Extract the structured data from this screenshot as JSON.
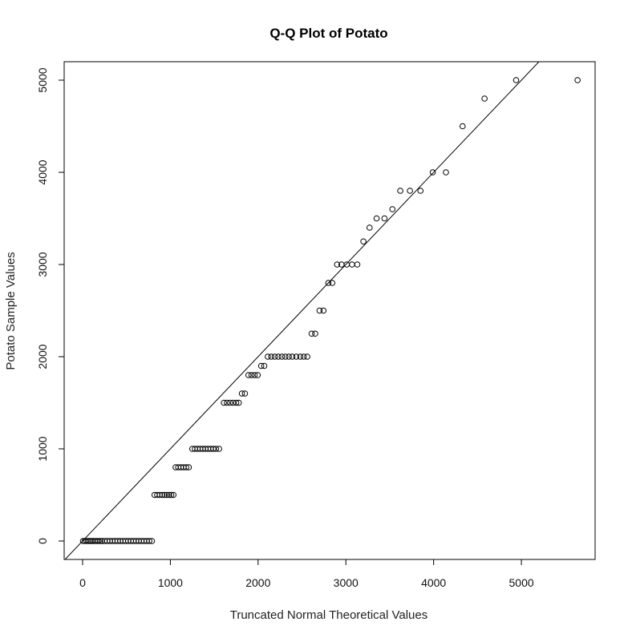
{
  "chart_data": {
    "type": "scatter",
    "title": "Q-Q Plot of Potato",
    "xlabel": "Truncated Normal Theoretical Values",
    "ylabel": "Potato Sample Values",
    "xlim": [
      -210,
      5840
    ],
    "ylim": [
      -200,
      5200
    ],
    "xticks": [
      0,
      1000,
      2000,
      3000,
      4000,
      5000
    ],
    "yticks": [
      0,
      1000,
      2000,
      3000,
      4000,
      5000
    ],
    "grid": false,
    "reference_line": {
      "slope": 1,
      "intercept": 0
    },
    "series": [
      {
        "points": [
          [
            5,
            0
          ],
          [
            25,
            0
          ],
          [
            45,
            0
          ],
          [
            65,
            0
          ],
          [
            85,
            0
          ],
          [
            100,
            0
          ],
          [
            120,
            0
          ],
          [
            140,
            0
          ],
          [
            160,
            0
          ],
          [
            180,
            0
          ],
          [
            200,
            0
          ],
          [
            220,
            0
          ],
          [
            250,
            0
          ],
          [
            280,
            0
          ],
          [
            310,
            0
          ],
          [
            340,
            0
          ],
          [
            370,
            0
          ],
          [
            400,
            0
          ],
          [
            430,
            0
          ],
          [
            460,
            0
          ],
          [
            490,
            0
          ],
          [
            520,
            0
          ],
          [
            550,
            0
          ],
          [
            580,
            0
          ],
          [
            610,
            0
          ],
          [
            640,
            0
          ],
          [
            670,
            0
          ],
          [
            700,
            0
          ],
          [
            730,
            0
          ],
          [
            760,
            0
          ],
          [
            790,
            0
          ],
          [
            820,
            500
          ],
          [
            850,
            500
          ],
          [
            880,
            500
          ],
          [
            910,
            500
          ],
          [
            935,
            500
          ],
          [
            960,
            500
          ],
          [
            985,
            500
          ],
          [
            1010,
            500
          ],
          [
            1035,
            500
          ],
          [
            1060,
            800
          ],
          [
            1090,
            800
          ],
          [
            1120,
            800
          ],
          [
            1150,
            800
          ],
          [
            1180,
            800
          ],
          [
            1210,
            800
          ],
          [
            1250,
            1000
          ],
          [
            1280,
            1000
          ],
          [
            1310,
            1000
          ],
          [
            1340,
            1000
          ],
          [
            1370,
            1000
          ],
          [
            1400,
            1000
          ],
          [
            1430,
            1000
          ],
          [
            1460,
            1000
          ],
          [
            1490,
            1000
          ],
          [
            1520,
            1000
          ],
          [
            1555,
            1000
          ],
          [
            1610,
            1500
          ],
          [
            1645,
            1500
          ],
          [
            1680,
            1500
          ],
          [
            1715,
            1500
          ],
          [
            1750,
            1500
          ],
          [
            1780,
            1500
          ],
          [
            1815,
            1600
          ],
          [
            1850,
            1600
          ],
          [
            1890,
            1800
          ],
          [
            1925,
            1800
          ],
          [
            1960,
            1800
          ],
          [
            1995,
            1800
          ],
          [
            2035,
            1900
          ],
          [
            2070,
            1900
          ],
          [
            2110,
            2000
          ],
          [
            2150,
            2000
          ],
          [
            2190,
            2000
          ],
          [
            2230,
            2000
          ],
          [
            2270,
            2000
          ],
          [
            2310,
            2000
          ],
          [
            2350,
            2000
          ],
          [
            2390,
            2000
          ],
          [
            2435,
            2000
          ],
          [
            2480,
            2000
          ],
          [
            2520,
            2000
          ],
          [
            2560,
            2000
          ],
          [
            2610,
            2250
          ],
          [
            2650,
            2250
          ],
          [
            2700,
            2500
          ],
          [
            2745,
            2500
          ],
          [
            2800,
            2800
          ],
          [
            2845,
            2800
          ],
          [
            2900,
            3000
          ],
          [
            2950,
            3000
          ],
          [
            3010,
            3000
          ],
          [
            3070,
            3000
          ],
          [
            3130,
            3000
          ],
          [
            3200,
            3250
          ],
          [
            3270,
            3400
          ],
          [
            3350,
            3500
          ],
          [
            3440,
            3500
          ],
          [
            3530,
            3600
          ],
          [
            3620,
            3800
          ],
          [
            3730,
            3800
          ],
          [
            3850,
            3800
          ],
          [
            3990,
            4000
          ],
          [
            4140,
            4000
          ],
          [
            4330,
            4500
          ],
          [
            4580,
            4800
          ],
          [
            4940,
            5000
          ],
          [
            5640,
            5000
          ]
        ]
      }
    ]
  }
}
